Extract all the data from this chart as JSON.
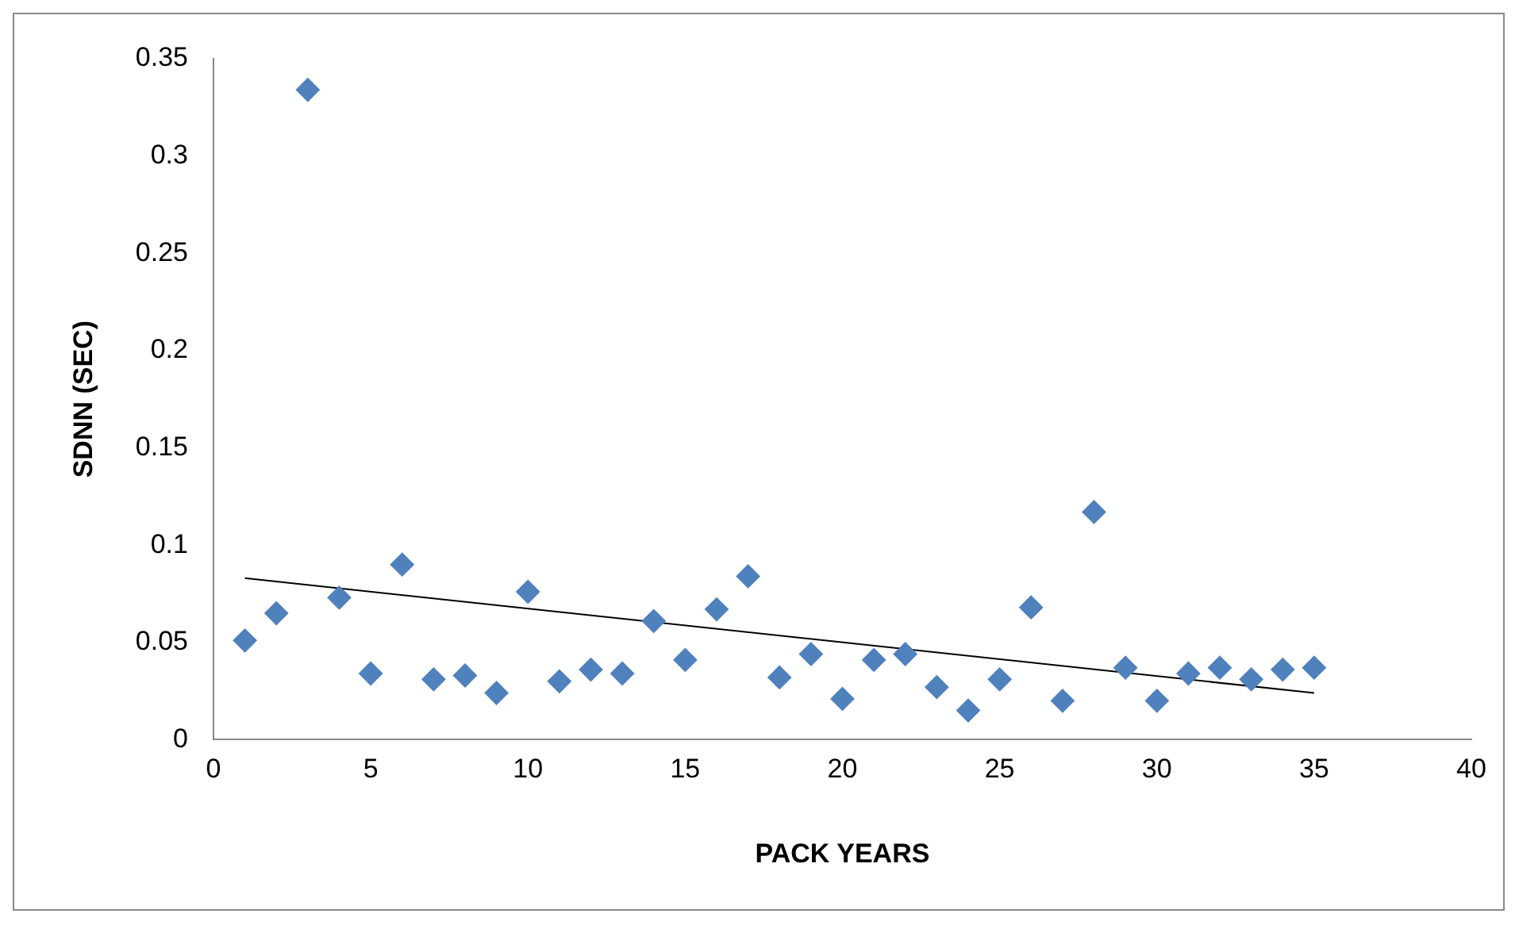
{
  "chart_data": {
    "type": "scatter",
    "xlabel": "PACK YEARS",
    "ylabel": "SDNN (SEC)",
    "xlim": [
      0,
      40
    ],
    "xticks": [
      0,
      5,
      10,
      15,
      20,
      25,
      30,
      35,
      40
    ],
    "ylim": [
      0,
      0.35
    ],
    "yticks": [
      0,
      0.05,
      0.1,
      0.15,
      0.2,
      0.25,
      0.3,
      0.35
    ],
    "marker": "diamond",
    "series": [
      {
        "type": "scatter",
        "color": "#4f81bd",
        "x": [
          1,
          2,
          3,
          4,
          5,
          6,
          7,
          8,
          9,
          10,
          11,
          12,
          13,
          14,
          15,
          16,
          17,
          18,
          19,
          20,
          21,
          22,
          23,
          24,
          25,
          26,
          27,
          28,
          29,
          30,
          31,
          32,
          33,
          34,
          35
        ],
        "values": [
          0.051,
          0.065,
          0.334,
          0.073,
          0.034,
          0.09,
          0.031,
          0.033,
          0.024,
          0.076,
          0.03,
          0.036,
          0.034,
          0.061,
          0.041,
          0.067,
          0.084,
          0.032,
          0.044,
          0.021,
          0.041,
          0.044,
          0.027,
          0.015,
          0.031,
          0.068,
          0.02,
          0.117,
          0.037,
          0.02,
          0.034,
          0.037,
          0.031,
          0.036,
          0.037
        ]
      },
      {
        "type": "line",
        "color": "#000000",
        "marker": "none",
        "line_style": "solid",
        "x": [
          1,
          35
        ],
        "values": [
          0.083,
          0.024
        ]
      }
    ]
  }
}
